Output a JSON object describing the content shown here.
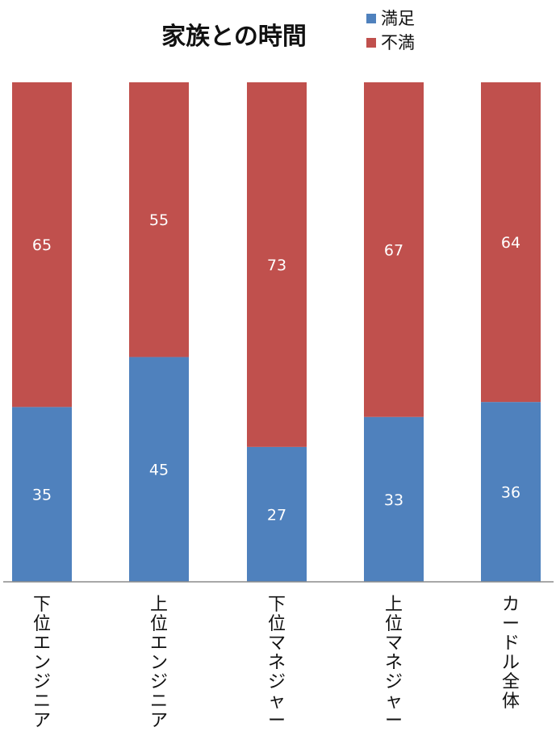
{
  "chart_data": {
    "type": "bar",
    "stacked": true,
    "title": "家族との時間",
    "xlabel": "",
    "ylabel": "",
    "ylim": [
      0,
      100
    ],
    "grid": false,
    "legend_position": "top-right",
    "categories": [
      "下位エンジニア",
      "上位エンジニア",
      "下位マネジャー",
      "上位マネジャー",
      "カードル全体"
    ],
    "series": [
      {
        "name": "満足",
        "color": "#4F81BD",
        "values": [
          35,
          45,
          27,
          33,
          36
        ]
      },
      {
        "name": "不満",
        "color": "#C0504D",
        "values": [
          65,
          55,
          73,
          67,
          64
        ]
      }
    ],
    "data_labels_color": "#FFFFFF"
  }
}
